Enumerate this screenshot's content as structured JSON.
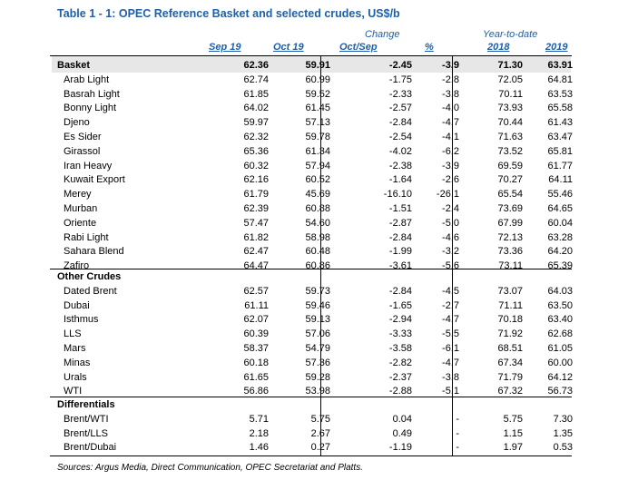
{
  "title": "Table 1 - 1: OPEC Reference Basket and selected crudes, US$/b",
  "headers": {
    "change": "Change",
    "ytd": "Year-to-date",
    "sep19": "Sep 19",
    "oct19": "Oct 19",
    "octsep": "Oct/Sep",
    "pct": "%",
    "y2018": "2018",
    "y2019": "2019"
  },
  "basket": {
    "group": {
      "name": "Basket",
      "sep": "62.36",
      "oct": "59.91",
      "chg": "-2.45",
      "pct": "-3.9",
      "y18": "71.30",
      "y19": "63.91"
    },
    "rows": [
      {
        "name": "Arab Light",
        "sep": "62.74",
        "oct": "60.99",
        "chg": "-1.75",
        "pct": "-2.8",
        "y18": "72.05",
        "y19": "64.81"
      },
      {
        "name": "Basrah Light",
        "sep": "61.85",
        "oct": "59.52",
        "chg": "-2.33",
        "pct": "-3.8",
        "y18": "70.11",
        "y19": "63.53"
      },
      {
        "name": "Bonny Light",
        "sep": "64.02",
        "oct": "61.45",
        "chg": "-2.57",
        "pct": "-4.0",
        "y18": "73.93",
        "y19": "65.58"
      },
      {
        "name": "Djeno",
        "sep": "59.97",
        "oct": "57.13",
        "chg": "-2.84",
        "pct": "-4.7",
        "y18": "70.44",
        "y19": "61.43"
      },
      {
        "name": "Es Sider",
        "sep": "62.32",
        "oct": "59.78",
        "chg": "-2.54",
        "pct": "-4.1",
        "y18": "71.63",
        "y19": "63.47"
      },
      {
        "name": "Girassol",
        "sep": "65.36",
        "oct": "61.34",
        "chg": "-4.02",
        "pct": "-6.2",
        "y18": "73.52",
        "y19": "65.81"
      },
      {
        "name": "Iran Heavy",
        "sep": "60.32",
        "oct": "57.94",
        "chg": "-2.38",
        "pct": "-3.9",
        "y18": "69.59",
        "y19": "61.77"
      },
      {
        "name": "Kuwait Export",
        "sep": "62.16",
        "oct": "60.52",
        "chg": "-1.64",
        "pct": "-2.6",
        "y18": "70.27",
        "y19": "64.11"
      },
      {
        "name": "Merey",
        "sep": "61.79",
        "oct": "45.69",
        "chg": "-16.10",
        "pct": "-26.1",
        "y18": "65.54",
        "y19": "55.46"
      },
      {
        "name": "Murban",
        "sep": "62.39",
        "oct": "60.88",
        "chg": "-1.51",
        "pct": "-2.4",
        "y18": "73.69",
        "y19": "64.65"
      },
      {
        "name": "Oriente",
        "sep": "57.47",
        "oct": "54.60",
        "chg": "-2.87",
        "pct": "-5.0",
        "y18": "67.99",
        "y19": "60.04"
      },
      {
        "name": "Rabi Light",
        "sep": "61.82",
        "oct": "58.98",
        "chg": "-2.84",
        "pct": "-4.6",
        "y18": "72.13",
        "y19": "63.28"
      },
      {
        "name": "Sahara Blend",
        "sep": "62.47",
        "oct": "60.48",
        "chg": "-1.99",
        "pct": "-3.2",
        "y18": "73.36",
        "y19": "64.20"
      },
      {
        "name": "Zafiro",
        "sep": "64.47",
        "oct": "60.86",
        "chg": "-3.61",
        "pct": "-5.6",
        "y18": "73.11",
        "y19": "65.39"
      }
    ]
  },
  "other": {
    "group": {
      "name": "Other Crudes"
    },
    "rows": [
      {
        "name": "Dated Brent",
        "sep": "62.57",
        "oct": "59.73",
        "chg": "-2.84",
        "pct": "-4.5",
        "y18": "73.07",
        "y19": "64.03"
      },
      {
        "name": "Dubai",
        "sep": "61.11",
        "oct": "59.46",
        "chg": "-1.65",
        "pct": "-2.7",
        "y18": "71.11",
        "y19": "63.50"
      },
      {
        "name": "Isthmus",
        "sep": "62.07",
        "oct": "59.13",
        "chg": "-2.94",
        "pct": "-4.7",
        "y18": "70.18",
        "y19": "63.40"
      },
      {
        "name": "LLS",
        "sep": "60.39",
        "oct": "57.06",
        "chg": "-3.33",
        "pct": "-5.5",
        "y18": "71.92",
        "y19": "62.68"
      },
      {
        "name": "Mars",
        "sep": "58.37",
        "oct": "54.79",
        "chg": "-3.58",
        "pct": "-6.1",
        "y18": "68.51",
        "y19": "61.05"
      },
      {
        "name": "Minas",
        "sep": "60.18",
        "oct": "57.36",
        "chg": "-2.82",
        "pct": "-4.7",
        "y18": "67.34",
        "y19": "60.00"
      },
      {
        "name": "Urals",
        "sep": "61.65",
        "oct": "59.28",
        "chg": "-2.37",
        "pct": "-3.8",
        "y18": "71.79",
        "y19": "64.12"
      },
      {
        "name": "WTI",
        "sep": "56.86",
        "oct": "53.98",
        "chg": "-2.88",
        "pct": "-5.1",
        "y18": "67.32",
        "y19": "56.73"
      }
    ]
  },
  "diff": {
    "group": {
      "name": "Differentials"
    },
    "rows": [
      {
        "name": "Brent/WTI",
        "sep": "5.71",
        "oct": "5.75",
        "chg": "0.04",
        "pct": "-",
        "y18": "5.75",
        "y19": "7.30"
      },
      {
        "name": "Brent/LLS",
        "sep": "2.18",
        "oct": "2.67",
        "chg": "0.49",
        "pct": "-",
        "y18": "1.15",
        "y19": "1.35"
      },
      {
        "name": "Brent/Dubai",
        "sep": "1.46",
        "oct": "0.27",
        "chg": "-1.19",
        "pct": "-",
        "y18": "1.97",
        "y19": "0.53"
      }
    ]
  },
  "source": "Sources: Argus Media, Direct Communication, OPEC Secretariat and Platts."
}
